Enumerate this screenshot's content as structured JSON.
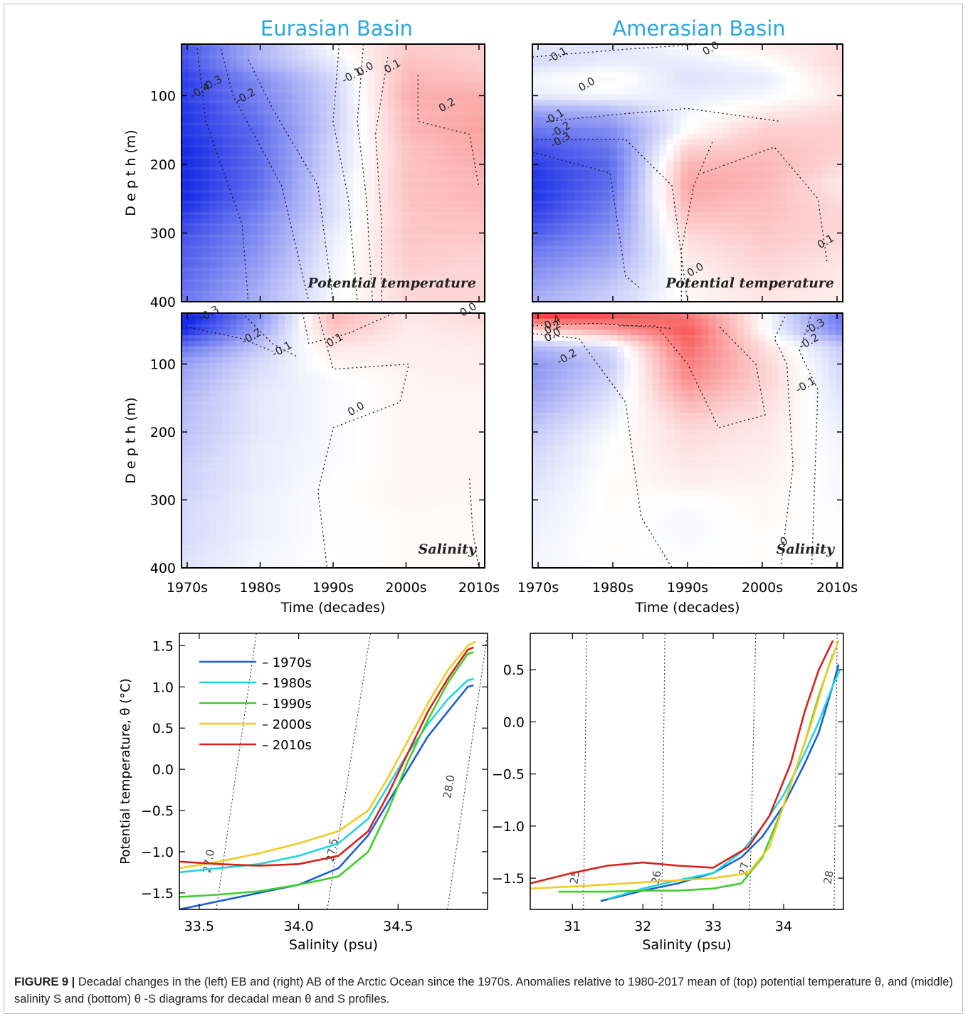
{
  "figure": {
    "basins": [
      "Eurasian Basin",
      "Amerasian Basin"
    ],
    "title_color": "#29a8e0",
    "caption_label": "FIGURE 9 |",
    "caption_text": "Decadal changes in the (left) EB and (right) AB of the Arctic Ocean since the 1970s. Anomalies relative to 1980-2017 mean of (top) potential temperature θ, and (middle) salinity S and (bottom) θ -S diagrams for decadal mean θ and S profiles."
  },
  "chart_data": [
    {
      "type": "heatmap",
      "panel": "eb-temperature",
      "basin": "Eurasian Basin",
      "label": "Potential temperature",
      "ylabel": "D e p t h  (m)",
      "xlabel": "",
      "x": [
        "1970s",
        "1980s",
        "1990s",
        "2000s",
        "2010s"
      ],
      "y": [
        25,
        50,
        75,
        100,
        125,
        150,
        175,
        200,
        225,
        250,
        275,
        300,
        325,
        350,
        375,
        400
      ],
      "ylim": [
        400,
        25
      ],
      "yticks": [
        100,
        200,
        300,
        400
      ],
      "z": [
        [
          -0.45,
          -0.2,
          0.0,
          0.12,
          0.12
        ],
        [
          -0.45,
          -0.2,
          -0.05,
          0.15,
          0.12
        ],
        [
          -0.5,
          -0.3,
          -0.1,
          0.18,
          0.15
        ],
        [
          -0.5,
          -0.32,
          -0.12,
          0.2,
          0.2
        ],
        [
          -0.52,
          -0.35,
          -0.12,
          0.18,
          0.22
        ],
        [
          -0.52,
          -0.38,
          -0.12,
          0.18,
          0.23
        ],
        [
          -0.55,
          -0.38,
          -0.1,
          0.15,
          0.22
        ],
        [
          -0.55,
          -0.38,
          -0.1,
          0.15,
          0.2
        ],
        [
          -0.55,
          -0.38,
          -0.08,
          0.15,
          0.18
        ],
        [
          -0.55,
          -0.36,
          -0.08,
          0.15,
          0.18
        ],
        [
          -0.5,
          -0.32,
          -0.08,
          0.14,
          0.16
        ],
        [
          -0.45,
          -0.3,
          -0.05,
          0.14,
          0.14
        ],
        [
          -0.42,
          -0.28,
          -0.04,
          0.13,
          0.12
        ],
        [
          -0.4,
          -0.25,
          -0.03,
          0.12,
          0.1
        ],
        [
          -0.38,
          -0.22,
          -0.02,
          0.1,
          0.1
        ],
        [
          -0.35,
          -0.2,
          -0.02,
          0.1,
          0.1
        ]
      ],
      "contour_labels": [
        "-0.4",
        "-0.3",
        "-0.2",
        "-0.1",
        "0.0",
        "0.1",
        "0.2"
      ]
    },
    {
      "type": "heatmap",
      "panel": "ab-temperature",
      "basin": "Amerasian Basin",
      "label": "Potential temperature",
      "ylabel": "",
      "xlabel": "",
      "x": [
        "1970s",
        "1980s",
        "1990s",
        "2000s",
        "2010s"
      ],
      "y": [
        25,
        50,
        75,
        100,
        125,
        150,
        175,
        200,
        225,
        250,
        275,
        300,
        325,
        350,
        375,
        400
      ],
      "ylim": [
        400,
        25
      ],
      "yticks": [
        100,
        200,
        300,
        400
      ],
      "z": [
        [
          -0.05,
          -0.08,
          0.0,
          0.05,
          0.08
        ],
        [
          -0.1,
          -0.05,
          -0.05,
          0.0,
          0.1
        ],
        [
          -0.02,
          0.02,
          -0.08,
          -0.05,
          0.08
        ],
        [
          -0.05,
          -0.02,
          -0.05,
          -0.02,
          0.05
        ],
        [
          -0.25,
          -0.2,
          -0.02,
          0.05,
          0.1
        ],
        [
          -0.35,
          -0.3,
          0.0,
          0.12,
          0.12
        ],
        [
          -0.45,
          -0.35,
          0.1,
          0.15,
          0.12
        ],
        [
          -0.5,
          -0.38,
          0.18,
          0.18,
          0.1
        ],
        [
          -0.52,
          -0.38,
          0.22,
          0.18,
          0.05
        ],
        [
          -0.52,
          -0.35,
          0.2,
          0.16,
          0.08
        ],
        [
          -0.48,
          -0.32,
          0.15,
          0.15,
          0.1
        ],
        [
          -0.42,
          -0.28,
          0.1,
          0.14,
          0.1
        ],
        [
          -0.35,
          -0.25,
          0.06,
          0.12,
          0.08
        ],
        [
          -0.3,
          -0.2,
          0.04,
          0.1,
          0.06
        ],
        [
          -0.25,
          -0.15,
          0.02,
          0.08,
          0.05
        ],
        [
          -0.2,
          -0.12,
          0.02,
          0.06,
          0.04
        ]
      ],
      "contour_labels": [
        "-0.1",
        "0.0",
        "0.0",
        "-0.1",
        "-0.2",
        "-0.3",
        "0.1",
        "0.0"
      ]
    },
    {
      "type": "heatmap",
      "panel": "eb-salinity",
      "basin": "Eurasian Basin",
      "label": "Salinity",
      "ylabel": "D e p t h  (m)",
      "xlabel": "Time (decades)",
      "x": [
        "1970s",
        "1980s",
        "1990s",
        "2000s",
        "2010s"
      ],
      "y": [
        25,
        50,
        75,
        100,
        125,
        150,
        175,
        200,
        225,
        250,
        275,
        300,
        325,
        350,
        375,
        400
      ],
      "ylim": [
        400,
        25
      ],
      "yticks": [
        100,
        200,
        300,
        400
      ],
      "z": [
        [
          -0.5,
          -0.25,
          0.15,
          0.05,
          0.08
        ],
        [
          -0.45,
          -0.2,
          0.12,
          0.04,
          0.06
        ],
        [
          -0.3,
          -0.12,
          0.05,
          0.03,
          0.04
        ],
        [
          -0.2,
          -0.08,
          0.02,
          0.03,
          0.03
        ],
        [
          -0.18,
          -0.06,
          -0.01,
          0.02,
          0.03
        ],
        [
          -0.15,
          -0.05,
          -0.01,
          0.02,
          0.02
        ],
        [
          -0.14,
          -0.05,
          -0.01,
          0.02,
          0.02
        ],
        [
          -0.13,
          -0.05,
          -0.01,
          0.02,
          0.02
        ],
        [
          -0.12,
          -0.04,
          -0.01,
          0.02,
          0.02
        ],
        [
          -0.1,
          -0.04,
          -0.01,
          0.02,
          0.02
        ],
        [
          -0.1,
          -0.04,
          0.0,
          0.02,
          0.02
        ],
        [
          -0.09,
          -0.03,
          0.0,
          0.02,
          0.01
        ],
        [
          -0.08,
          -0.03,
          0.0,
          0.01,
          0.01
        ],
        [
          -0.08,
          -0.03,
          0.0,
          0.01,
          0.01
        ],
        [
          -0.07,
          -0.02,
          0.0,
          0.01,
          0.01
        ],
        [
          -0.06,
          -0.02,
          0.0,
          0.01,
          0.01
        ]
      ],
      "contour_labels": [
        "-0.3",
        "-0.2",
        "-0.1",
        "0.1",
        "0.0",
        "0.0"
      ]
    },
    {
      "type": "heatmap",
      "panel": "ab-salinity",
      "basin": "Amerasian Basin",
      "label": "Salinity",
      "ylabel": "",
      "xlabel": "Time (decades)",
      "x": [
        "1970s",
        "1980s",
        "1990s",
        "2000s",
        "2010s"
      ],
      "y": [
        25,
        50,
        75,
        100,
        125,
        150,
        175,
        200,
        225,
        250,
        275,
        300,
        325,
        350,
        375,
        400
      ],
      "ylim": [
        400,
        25
      ],
      "yticks": [
        100,
        200,
        300,
        400
      ],
      "z": [
        [
          0.6,
          0.5,
          0.35,
          0.0,
          -0.4
        ],
        [
          0.1,
          0.25,
          0.45,
          0.0,
          -0.35
        ],
        [
          -0.2,
          -0.1,
          0.4,
          0.08,
          -0.15
        ],
        [
          -0.3,
          -0.15,
          0.35,
          0.12,
          -0.12
        ],
        [
          -0.28,
          -0.12,
          0.3,
          0.12,
          -0.1
        ],
        [
          -0.25,
          -0.08,
          0.22,
          0.1,
          -0.08
        ],
        [
          -0.2,
          -0.05,
          0.15,
          0.08,
          -0.06
        ],
        [
          -0.15,
          -0.02,
          0.1,
          0.06,
          -0.04
        ],
        [
          -0.12,
          0.0,
          0.08,
          0.05,
          -0.03
        ],
        [
          -0.1,
          0.0,
          0.06,
          0.04,
          -0.02
        ],
        [
          -0.08,
          0.01,
          0.04,
          0.03,
          -0.02
        ],
        [
          -0.06,
          0.01,
          0.0,
          0.02,
          -0.02
        ],
        [
          -0.05,
          0.01,
          -0.02,
          0.02,
          -0.01
        ],
        [
          -0.04,
          0.01,
          -0.02,
          0.01,
          -0.01
        ],
        [
          -0.03,
          0.01,
          -0.01,
          0.01,
          -0.01
        ],
        [
          -0.03,
          0.0,
          -0.01,
          0.01,
          -0.01
        ]
      ],
      "contour_labels": [
        "0.4",
        "0.2",
        "0.0",
        "-0.2",
        "-0.3",
        "-0.2",
        "-0.1",
        "0"
      ]
    },
    {
      "type": "line",
      "panel": "eb-ts",
      "basin": "Eurasian Basin",
      "xlabel": "Salinity (psu)",
      "ylabel": "Potential temperature, θ (°C)",
      "xlim": [
        33.4,
        34.95
      ],
      "ylim": [
        -1.7,
        1.65
      ],
      "xticks": [
        "33.5",
        "34.0",
        "34.5"
      ],
      "yticks": [
        "1.5",
        "1.0",
        "0.5",
        "0.0",
        "−0.5",
        "−1.0",
        "−1.5"
      ],
      "legend": [
        "– 1970s",
        "– 1980s",
        "– 1990s",
        "– 2000s",
        "– 2010s"
      ],
      "legend_position": "top-left",
      "isopycnal_labels": [
        "27.0",
        "27.5",
        "28.0"
      ],
      "series": [
        {
          "name": "1970s",
          "color": "#1a5fd6",
          "x": [
            33.4,
            33.6,
            33.8,
            34.0,
            34.2,
            34.35,
            34.45,
            34.55,
            34.65,
            34.75,
            34.85,
            34.88
          ],
          "y": [
            -1.7,
            -1.6,
            -1.5,
            -1.4,
            -1.2,
            -0.8,
            -0.4,
            0.0,
            0.4,
            0.7,
            1.0,
            1.02
          ]
        },
        {
          "name": "1980s",
          "color": "#22d4e0",
          "x": [
            33.4,
            33.6,
            33.8,
            34.0,
            34.2,
            34.35,
            34.45,
            34.55,
            34.65,
            34.75,
            34.85,
            34.88
          ],
          "y": [
            -1.25,
            -1.2,
            -1.15,
            -1.05,
            -0.9,
            -0.6,
            -0.2,
            0.2,
            0.55,
            0.85,
            1.08,
            1.1
          ]
        },
        {
          "name": "1990s",
          "color": "#3fcf2a",
          "x": [
            33.4,
            33.6,
            33.8,
            34.0,
            34.2,
            34.35,
            34.45,
            34.55,
            34.65,
            34.75,
            34.85,
            34.88
          ],
          "y": [
            -1.55,
            -1.52,
            -1.48,
            -1.4,
            -1.3,
            -1.0,
            -0.5,
            0.1,
            0.6,
            1.05,
            1.4,
            1.42
          ]
        },
        {
          "name": "2000s",
          "color": "#f2c925",
          "x": [
            33.4,
            33.6,
            33.8,
            34.0,
            34.2,
            34.35,
            34.45,
            34.55,
            34.65,
            34.75,
            34.85,
            34.89
          ],
          "y": [
            -1.2,
            -1.12,
            -1.02,
            -0.9,
            -0.75,
            -0.5,
            -0.1,
            0.35,
            0.8,
            1.2,
            1.5,
            1.55
          ]
        },
        {
          "name": "2010s",
          "color": "#d6221a",
          "x": [
            33.4,
            33.6,
            33.8,
            34.0,
            34.2,
            34.35,
            34.45,
            34.55,
            34.65,
            34.75,
            34.85,
            34.88
          ],
          "y": [
            -1.12,
            -1.15,
            -1.17,
            -1.15,
            -1.05,
            -0.75,
            -0.3,
            0.2,
            0.7,
            1.1,
            1.45,
            1.48
          ]
        }
      ]
    },
    {
      "type": "line",
      "panel": "ab-ts",
      "basin": "Amerasian Basin",
      "xlabel": "Salinity (psu)",
      "ylabel": "",
      "xlim": [
        30.4,
        34.85
      ],
      "ylim": [
        -1.8,
        0.85
      ],
      "xticks": [
        "31",
        "32",
        "33",
        "34"
      ],
      "yticks": [
        "0.5",
        "0.0",
        "−0.5",
        "−1.0",
        "−1.5"
      ],
      "legend": [],
      "isopycnal_labels": [
        "25",
        "26",
        "27",
        "28"
      ],
      "series": [
        {
          "name": "1970s",
          "color": "#1a5fd6",
          "x": [
            31.4,
            32.0,
            32.5,
            33.0,
            33.4,
            33.7,
            34.0,
            34.3,
            34.5,
            34.7,
            34.78
          ],
          "y": [
            -1.72,
            -1.62,
            -1.55,
            -1.45,
            -1.3,
            -1.1,
            -0.8,
            -0.4,
            -0.1,
            0.35,
            0.55
          ]
        },
        {
          "name": "1980s",
          "color": "#22d4e0",
          "x": [
            31.5,
            32.0,
            32.5,
            33.0,
            33.4,
            33.7,
            34.0,
            34.3,
            34.5,
            34.7,
            34.8
          ],
          "y": [
            -1.7,
            -1.6,
            -1.52,
            -1.45,
            -1.25,
            -1.0,
            -0.7,
            -0.3,
            0.0,
            0.35,
            0.5
          ]
        },
        {
          "name": "1990s",
          "color": "#3fcf2a",
          "x": [
            30.8,
            31.5,
            32.0,
            32.5,
            33.0,
            33.4,
            33.7,
            34.0,
            34.3,
            34.5,
            34.7
          ],
          "y": [
            -1.63,
            -1.63,
            -1.62,
            -1.62,
            -1.6,
            -1.55,
            -1.3,
            -0.8,
            -0.2,
            0.25,
            0.65
          ]
        },
        {
          "name": "2000s",
          "color": "#f2c925",
          "x": [
            30.4,
            31.0,
            31.5,
            32.0,
            32.5,
            33.0,
            33.5,
            33.8,
            34.1,
            34.4,
            34.6,
            34.78
          ],
          "y": [
            -1.6,
            -1.58,
            -1.56,
            -1.54,
            -1.52,
            -1.5,
            -1.45,
            -1.2,
            -0.6,
            0.0,
            0.45,
            0.78
          ]
        },
        {
          "name": "2010s",
          "color": "#d6221a",
          "x": [
            30.4,
            31.0,
            31.5,
            32.0,
            32.5,
            33.0,
            33.5,
            33.8,
            34.1,
            34.3,
            34.5,
            34.7
          ],
          "y": [
            -1.55,
            -1.45,
            -1.38,
            -1.35,
            -1.38,
            -1.4,
            -1.2,
            -0.9,
            -0.4,
            0.1,
            0.5,
            0.78
          ]
        }
      ]
    }
  ]
}
